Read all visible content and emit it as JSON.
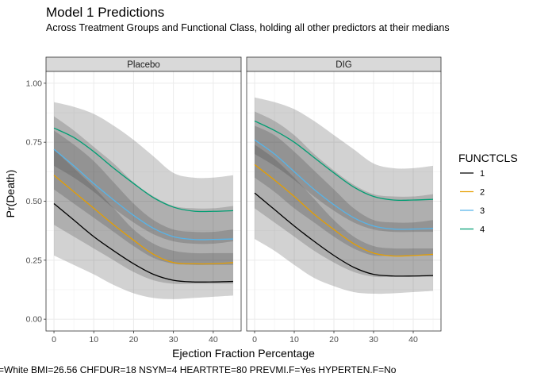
{
  "chart_data": {
    "type": "line",
    "title": "Model 1 Predictions",
    "subtitle": "Across Treatment Groups and Functional Class, holding all other predictors at their medians",
    "xlabel": "Ejection Fraction Percentage",
    "ylabel": "Pr(Death)",
    "caption": "=White BMI=26.56 CHFDUR=18 NSYM=4 HEARTRTE=80 PREVMI.F=Yes HYPERTEN.F=No",
    "xlim": [
      -2,
      47
    ],
    "ylim": [
      -0.05,
      1.05
    ],
    "x_ticks": [
      0,
      10,
      20,
      30,
      40
    ],
    "x_tick_labels": [
      "0",
      "10",
      "20",
      "30",
      "40"
    ],
    "y_ticks": [
      0,
      0.25,
      0.5,
      0.75,
      1.0
    ],
    "y_tick_labels": [
      "0.00",
      "0.25",
      "0.50",
      "0.75",
      "1.00"
    ],
    "grid": true,
    "legend": {
      "title": "FUNCTCLS",
      "position": "right",
      "entries": [
        "1",
        "2",
        "3",
        "4"
      ]
    },
    "colors": {
      "1": "#000000",
      "2": "#e69f00",
      "3": "#56b4e9",
      "4": "#009e73",
      "band": "#333333",
      "strip_bg": "#d9d9d9",
      "grid": "#ebebeb"
    },
    "x": [
      0,
      5,
      10,
      15,
      20,
      25,
      30,
      35,
      40,
      45
    ],
    "panels": [
      {
        "name": "Placebo",
        "series": [
          {
            "name": "1",
            "values": [
              0.49,
              0.42,
              0.35,
              0.29,
              0.235,
              0.19,
              0.165,
              0.158,
              0.158,
              0.16
            ],
            "lower": [
              0.27,
              0.23,
              0.19,
              0.145,
              0.11,
              0.09,
              0.085,
              0.09,
              0.095,
              0.1
            ],
            "upper": [
              0.72,
              0.64,
              0.56,
              0.47,
              0.38,
              0.32,
              0.29,
              0.28,
              0.28,
              0.28
            ]
          },
          {
            "name": "2",
            "values": [
              0.61,
              0.54,
              0.47,
              0.4,
              0.335,
              0.275,
              0.24,
              0.235,
              0.235,
              0.24
            ],
            "lower": [
              0.4,
              0.35,
              0.3,
              0.25,
              0.2,
              0.165,
              0.15,
              0.15,
              0.15,
              0.15
            ],
            "upper": [
              0.8,
              0.74,
              0.67,
              0.58,
              0.49,
              0.42,
              0.38,
              0.37,
              0.37,
              0.38
            ]
          },
          {
            "name": "3",
            "values": [
              0.72,
              0.65,
              0.575,
              0.505,
              0.44,
              0.385,
              0.35,
              0.338,
              0.338,
              0.34
            ],
            "lower": [
              0.55,
              0.49,
              0.43,
              0.37,
              0.31,
              0.26,
              0.235,
              0.23,
              0.23,
              0.23
            ],
            "upper": [
              0.86,
              0.8,
              0.73,
              0.66,
              0.58,
              0.52,
              0.48,
              0.47,
              0.47,
              0.48
            ]
          },
          {
            "name": "4",
            "values": [
              0.81,
              0.77,
              0.71,
              0.64,
              0.575,
              0.515,
              0.475,
              0.458,
              0.457,
              0.46
            ],
            "lower": [
              0.65,
              0.6,
              0.54,
              0.47,
              0.41,
              0.36,
              0.33,
              0.32,
              0.32,
              0.33
            ],
            "upper": [
              0.92,
              0.9,
              0.87,
              0.82,
              0.76,
              0.69,
              0.62,
              0.6,
              0.6,
              0.61
            ]
          }
        ]
      },
      {
        "name": "DIG",
        "series": [
          {
            "name": "1",
            "values": [
              0.535,
              0.465,
              0.395,
              0.33,
              0.27,
              0.22,
              0.19,
              0.183,
              0.183,
              0.185
            ],
            "lower": [
              0.34,
              0.29,
              0.23,
              0.175,
              0.14,
              0.115,
              0.108,
              0.11,
              0.115,
              0.12
            ],
            "upper": [
              0.74,
              0.68,
              0.6,
              0.51,
              0.42,
              0.35,
              0.31,
              0.3,
              0.3,
              0.3
            ]
          },
          {
            "name": "2",
            "values": [
              0.655,
              0.59,
              0.52,
              0.445,
              0.38,
              0.32,
              0.28,
              0.268,
              0.27,
              0.275
            ],
            "lower": [
              0.47,
              0.41,
              0.35,
              0.29,
              0.24,
              0.2,
              0.18,
              0.18,
              0.18,
              0.18
            ],
            "upper": [
              0.82,
              0.78,
              0.71,
              0.63,
              0.55,
              0.47,
              0.42,
              0.41,
              0.41,
              0.42
            ]
          },
          {
            "name": "3",
            "values": [
              0.76,
              0.7,
              0.625,
              0.55,
              0.485,
              0.43,
              0.395,
              0.382,
              0.382,
              0.385
            ],
            "lower": [
              0.6,
              0.54,
              0.47,
              0.41,
              0.35,
              0.3,
              0.27,
              0.27,
              0.27,
              0.27
            ],
            "upper": [
              0.88,
              0.84,
              0.78,
              0.7,
              0.63,
              0.57,
              0.53,
              0.52,
              0.52,
              0.53
            ]
          },
          {
            "name": "4",
            "values": [
              0.84,
              0.8,
              0.75,
              0.685,
              0.62,
              0.56,
              0.52,
              0.505,
              0.505,
              0.508
            ],
            "lower": [
              0.7,
              0.65,
              0.59,
              0.52,
              0.46,
              0.41,
              0.38,
              0.37,
              0.37,
              0.37
            ],
            "upper": [
              0.94,
              0.92,
              0.89,
              0.84,
              0.78,
              0.72,
              0.66,
              0.64,
              0.64,
              0.65
            ]
          }
        ]
      }
    ]
  }
}
